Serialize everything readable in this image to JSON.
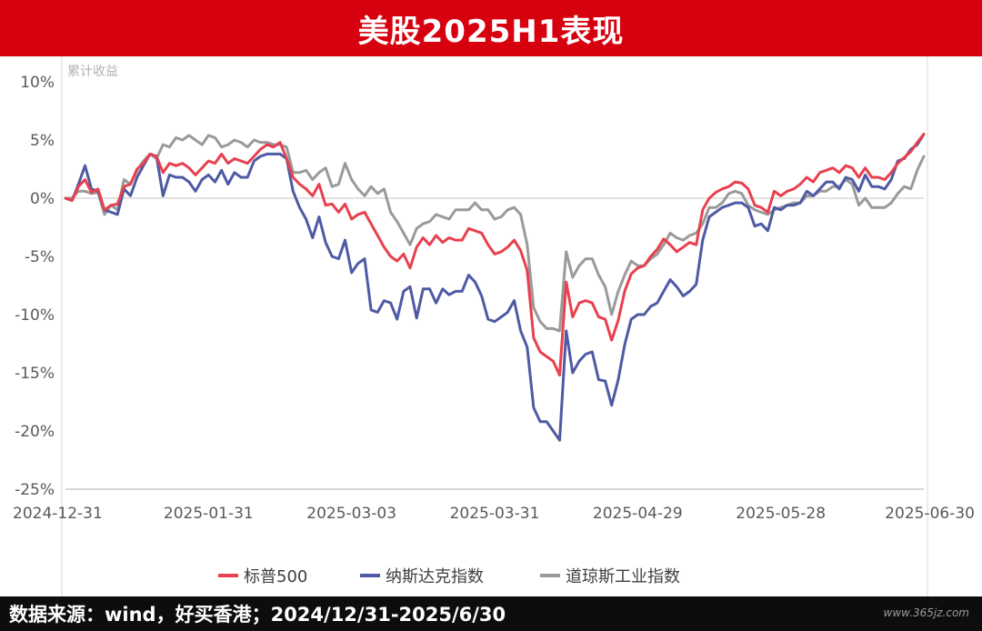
{
  "header": {
    "title": "美股2025H1表现"
  },
  "footer": {
    "source": "数据来源：wind，好买香港；2024/12/31-2025/6/30"
  },
  "watermark": "www.365jz.com",
  "chart_data": {
    "type": "line",
    "ylabel": "累计收益",
    "ylim": [
      -25,
      10
    ],
    "yticks": [
      10,
      5,
      0,
      -5,
      -10,
      -15,
      -20,
      -25
    ],
    "ytick_labels": [
      "10%",
      "5%",
      "0%",
      "-5%",
      "-10%",
      "-15%",
      "-20%",
      "-25%"
    ],
    "xtick_labels": [
      "2024-12-31",
      "2025-01-31",
      "2025-03-03",
      "2025-03-31",
      "2025-04-29",
      "2025-05-28",
      "2025-06-30"
    ],
    "grid": false,
    "legend_position": "bottom",
    "series": [
      {
        "name": "标普500",
        "color": "#e8404e",
        "values": [
          0.0,
          -0.2,
          1.0,
          1.6,
          0.5,
          0.8,
          -1.0,
          -0.6,
          -0.5,
          1.0,
          1.2,
          2.5,
          3.0,
          3.8,
          3.6,
          2.2,
          3.0,
          2.8,
          3.0,
          2.6,
          2.0,
          2.6,
          3.2,
          3.0,
          3.8,
          3.0,
          3.4,
          3.2,
          3.0,
          3.6,
          4.2,
          4.6,
          4.4,
          4.8,
          3.4,
          1.8,
          1.2,
          0.8,
          0.2,
          1.2,
          -0.6,
          -0.5,
          -1.2,
          -0.5,
          -1.8,
          -1.4,
          -1.2,
          -2.2,
          -3.2,
          -4.2,
          -5.0,
          -5.4,
          -4.8,
          -6.0,
          -4.2,
          -3.4,
          -4.0,
          -3.2,
          -3.8,
          -3.4,
          -3.6,
          -3.6,
          -2.6,
          -2.8,
          -3.0,
          -4.0,
          -4.8,
          -4.6,
          -4.2,
          -3.6,
          -4.5,
          -6.2,
          -12.0,
          -13.2,
          -13.6,
          -14.0,
          -15.2,
          -7.2,
          -10.2,
          -9.0,
          -8.8,
          -9.0,
          -10.2,
          -10.4,
          -12.2,
          -10.5,
          -8.0,
          -6.5,
          -6.0,
          -5.8,
          -5.0,
          -4.4,
          -3.5,
          -4.0,
          -4.6,
          -4.2,
          -3.8,
          -4.0,
          -1.0,
          0.0,
          0.5,
          0.8,
          1.0,
          1.4,
          1.3,
          0.8,
          -0.6,
          -0.8,
          -1.2,
          0.6,
          0.2,
          0.6,
          0.8,
          1.2,
          1.8,
          1.4,
          2.2,
          2.4,
          2.6,
          2.2,
          2.8,
          2.6,
          1.8,
          2.6,
          1.8,
          1.8,
          1.6,
          2.2,
          3.0,
          3.5,
          4.0,
          4.8,
          5.5
        ]
      },
      {
        "name": "纳斯达克指数",
        "color": "#4e5aa3",
        "values": [
          0.0,
          -0.2,
          1.2,
          2.8,
          0.8,
          0.6,
          -1.0,
          -1.2,
          -1.4,
          0.8,
          0.2,
          1.8,
          2.8,
          3.8,
          3.6,
          0.2,
          2.0,
          1.8,
          1.8,
          1.4,
          0.6,
          1.6,
          2.0,
          1.4,
          2.4,
          1.2,
          2.2,
          1.8,
          1.8,
          3.2,
          3.6,
          3.8,
          3.8,
          3.8,
          3.4,
          0.6,
          -0.8,
          -1.8,
          -3.4,
          -1.6,
          -3.8,
          -5.0,
          -5.2,
          -3.6,
          -6.4,
          -5.6,
          -5.2,
          -9.6,
          -9.8,
          -8.8,
          -9.0,
          -10.4,
          -8.0,
          -7.6,
          -10.3,
          -7.8,
          -7.8,
          -9.0,
          -7.8,
          -8.3,
          -8.0,
          -8.0,
          -6.6,
          -7.2,
          -8.4,
          -10.4,
          -10.6,
          -10.2,
          -9.8,
          -8.8,
          -11.4,
          -12.8,
          -18.0,
          -19.2,
          -19.2,
          -20.0,
          -20.8,
          -11.4,
          -15.0,
          -14.0,
          -13.4,
          -13.2,
          -15.6,
          -15.7,
          -17.8,
          -15.6,
          -12.6,
          -10.4,
          -10.0,
          -10.0,
          -9.3,
          -9.0,
          -8.0,
          -7.0,
          -7.6,
          -8.4,
          -8.0,
          -7.4,
          -3.6,
          -1.6,
          -1.2,
          -0.8,
          -0.6,
          -0.4,
          -0.4,
          -0.8,
          -2.4,
          -2.2,
          -2.8,
          -0.8,
          -1.0,
          -0.6,
          -0.6,
          -0.4,
          0.6,
          0.2,
          0.8,
          1.4,
          1.4,
          0.8,
          1.8,
          1.6,
          0.6,
          2.0,
          1.0,
          1.0,
          0.8,
          1.6,
          3.2,
          3.4,
          4.2,
          4.6,
          5.5
        ]
      },
      {
        "name": "道琼斯工业指数",
        "color": "#9a9a9a",
        "values": [
          0.0,
          0.0,
          0.6,
          0.6,
          0.4,
          0.5,
          -1.4,
          -0.6,
          -1.0,
          1.6,
          1.2,
          2.4,
          3.2,
          3.8,
          3.4,
          4.6,
          4.4,
          5.2,
          5.0,
          5.4,
          5.0,
          4.6,
          5.4,
          5.2,
          4.4,
          4.6,
          5.0,
          4.8,
          4.4,
          5.0,
          4.8,
          4.8,
          4.6,
          4.6,
          4.4,
          2.2,
          2.2,
          2.4,
          1.6,
          2.2,
          2.6,
          1.0,
          1.2,
          3.0,
          1.6,
          0.8,
          0.2,
          1.0,
          0.4,
          0.8,
          -1.2,
          -2.0,
          -3.0,
          -4.0,
          -2.6,
          -2.2,
          -2.0,
          -1.4,
          -1.6,
          -1.8,
          -1.0,
          -1.0,
          -1.0,
          -0.4,
          -1.0,
          -1.0,
          -1.8,
          -1.6,
          -1.0,
          -0.8,
          -1.4,
          -4.0,
          -9.4,
          -10.6,
          -11.2,
          -11.2,
          -11.4,
          -4.6,
          -6.8,
          -5.8,
          -5.2,
          -5.2,
          -6.6,
          -7.6,
          -10.0,
          -8.0,
          -6.6,
          -5.4,
          -5.8,
          -5.8,
          -5.2,
          -4.8,
          -4.0,
          -3.0,
          -3.4,
          -3.6,
          -3.2,
          -3.0,
          -2.2,
          -0.8,
          -0.8,
          -0.4,
          0.4,
          0.6,
          0.4,
          -0.6,
          -1.0,
          -1.2,
          -1.4,
          -1.0,
          -0.8,
          -0.6,
          -0.4,
          -0.4,
          0.2,
          0.2,
          0.6,
          0.6,
          1.0,
          1.0,
          1.6,
          1.2,
          -0.6,
          0.0,
          -0.8,
          -0.8,
          -0.8,
          -0.4,
          0.4,
          1.0,
          0.8,
          2.4,
          3.6
        ]
      }
    ]
  }
}
